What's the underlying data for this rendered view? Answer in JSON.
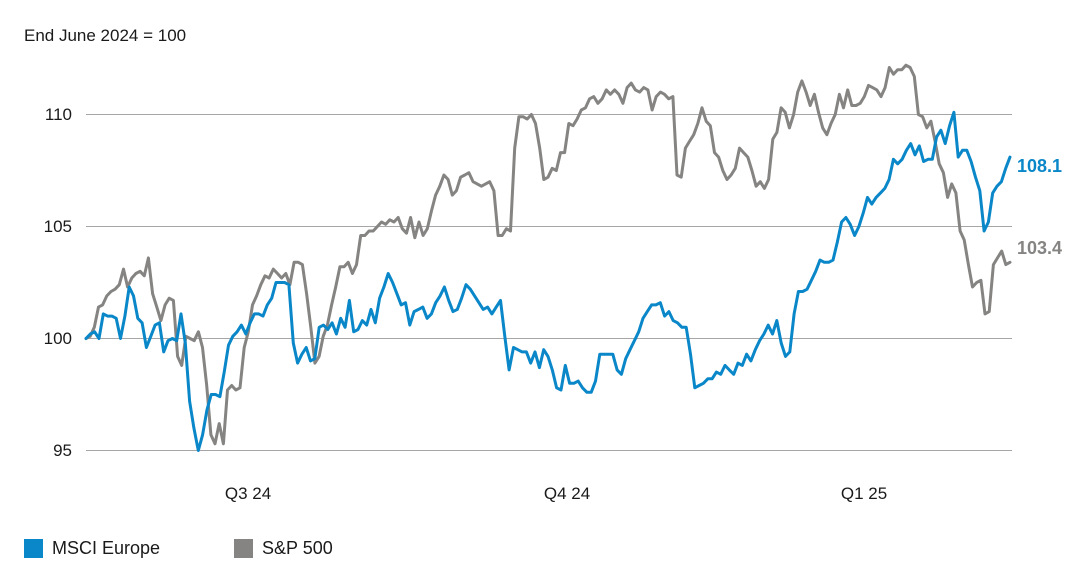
{
  "chart_data": {
    "type": "line",
    "subtitle": "End June 2024 = 100",
    "xlabel": "",
    "ylabel": "",
    "x_tick_labels": [
      "Q3 24",
      "Q4 24",
      "Q1 25"
    ],
    "y_tick_labels": [
      "95",
      "100",
      "105",
      "110"
    ],
    "ylim": [
      94.5,
      112.5
    ],
    "grid": "horizontal",
    "legend_placement": "bottom-left",
    "series": [
      {
        "name": "MSCI Europe",
        "color": "#0a87c8",
        "end_label": "108.1",
        "values": [
          100.0,
          100.2,
          100.3,
          100.0,
          101.1,
          101.0,
          101.0,
          100.9,
          100.0,
          101.0,
          102.3,
          101.9,
          100.9,
          100.7,
          99.6,
          100.1,
          100.6,
          100.7,
          99.4,
          99.9,
          100.0,
          99.9,
          101.1,
          99.8,
          97.2,
          96.0,
          95.0,
          95.7,
          96.8,
          97.5,
          97.5,
          97.4,
          98.5,
          99.7,
          100.1,
          100.3,
          100.6,
          100.2,
          100.7,
          101.1,
          101.1,
          101.0,
          101.5,
          101.8,
          102.5,
          102.5,
          102.5,
          102.4,
          99.8,
          98.9,
          99.3,
          99.6,
          99.0,
          99.1,
          100.5,
          100.6,
          100.4,
          100.7,
          100.2,
          100.9,
          100.5,
          101.7,
          100.3,
          100.4,
          100.8,
          100.6,
          101.3,
          100.7,
          101.8,
          102.3,
          102.9,
          102.5,
          102.0,
          101.5,
          101.6,
          100.6,
          101.2,
          101.3,
          101.4,
          100.9,
          101.1,
          101.6,
          101.9,
          102.3,
          101.7,
          101.2,
          101.3,
          101.8,
          102.4,
          102.2,
          101.9,
          101.6,
          101.3,
          101.4,
          101.1,
          101.4,
          101.7,
          100.1,
          98.6,
          99.6,
          99.5,
          99.4,
          99.4,
          98.9,
          99.4,
          98.7,
          99.5,
          99.2,
          98.6,
          97.8,
          97.7,
          98.8,
          98.0,
          98.0,
          98.1,
          97.8,
          97.6,
          97.6,
          98.1,
          99.3,
          99.3,
          99.3,
          99.3,
          98.6,
          98.4,
          99.1,
          99.5,
          99.9,
          100.3,
          100.9,
          101.2,
          101.5,
          101.5,
          101.6,
          101.0,
          101.2,
          100.8,
          100.7,
          100.5,
          100.5,
          99.3,
          97.8,
          97.9,
          98.0,
          98.2,
          98.2,
          98.5,
          98.4,
          98.8,
          98.6,
          98.4,
          98.9,
          98.8,
          99.3,
          99.0,
          99.5,
          99.9,
          100.2,
          100.6,
          100.2,
          100.8,
          99.8,
          99.2,
          99.4,
          101.1,
          102.1,
          102.1,
          102.2,
          102.6,
          103.0,
          103.5,
          103.4,
          103.4,
          103.5,
          104.3,
          105.2,
          105.4,
          105.1,
          104.6,
          105.0,
          105.6,
          106.3,
          106.0,
          106.3,
          106.5,
          106.7,
          107.1,
          108.0,
          107.8,
          108.0,
          108.4,
          108.7,
          108.2,
          108.6,
          107.9,
          108.0,
          108.0,
          109.0,
          109.3,
          108.7,
          109.5,
          110.1,
          108.1,
          108.4,
          108.4,
          107.9,
          107.2,
          106.6,
          104.8,
          105.2,
          106.5,
          106.8,
          107.0,
          107.6,
          108.1
        ]
      },
      {
        "name": "S&P 500",
        "color": "#858482",
        "end_label": "103.4",
        "values": [
          100.0,
          100.1,
          100.5,
          101.4,
          101.5,
          101.9,
          102.1,
          102.2,
          102.4,
          103.1,
          102.3,
          102.7,
          102.9,
          103.0,
          102.8,
          103.6,
          102.0,
          101.4,
          100.8,
          101.5,
          101.8,
          101.7,
          99.2,
          98.8,
          100.1,
          100.0,
          99.9,
          100.3,
          99.6,
          97.9,
          95.7,
          95.3,
          96.2,
          95.3,
          97.7,
          97.9,
          97.7,
          97.8,
          99.6,
          100.3,
          101.5,
          101.9,
          102.4,
          102.8,
          102.7,
          103.1,
          102.9,
          102.7,
          102.9,
          102.4,
          103.4,
          103.4,
          103.3,
          102.0,
          100.5,
          98.9,
          99.2,
          100.1,
          100.6,
          101.5,
          102.3,
          103.2,
          103.2,
          103.4,
          102.9,
          103.3,
          104.6,
          104.6,
          104.8,
          104.8,
          105.0,
          105.2,
          105.1,
          105.3,
          105.2,
          105.4,
          104.9,
          104.7,
          105.4,
          104.5,
          105.2,
          104.6,
          104.9,
          105.7,
          106.4,
          106.8,
          107.3,
          107.1,
          106.4,
          106.6,
          107.2,
          107.3,
          107.4,
          107.0,
          106.9,
          106.8,
          106.9,
          107.0,
          106.6,
          104.6,
          104.6,
          104.9,
          104.8,
          108.5,
          109.9,
          109.9,
          109.8,
          110.0,
          109.6,
          108.5,
          107.1,
          107.2,
          107.6,
          107.5,
          108.3,
          108.3,
          109.6,
          109.5,
          109.8,
          110.2,
          110.3,
          110.7,
          110.8,
          110.5,
          110.7,
          111.1,
          110.9,
          111.1,
          110.9,
          110.5,
          111.2,
          111.4,
          111.1,
          111.0,
          111.2,
          111.1,
          110.2,
          110.8,
          111.0,
          110.9,
          110.7,
          110.8,
          107.3,
          107.2,
          108.5,
          108.8,
          109.1,
          109.6,
          110.3,
          109.7,
          109.5,
          108.3,
          108.1,
          107.5,
          107.1,
          107.3,
          107.6,
          108.5,
          108.3,
          108.1,
          107.5,
          106.8,
          107.0,
          106.7,
          107.1,
          108.9,
          109.2,
          110.3,
          110.1,
          109.4,
          110.0,
          111.0,
          111.5,
          111.0,
          110.4,
          110.9,
          110.1,
          109.4,
          109.1,
          109.6,
          110.0,
          110.9,
          110.3,
          111.1,
          110.4,
          110.4,
          110.5,
          110.8,
          111.3,
          111.2,
          111.1,
          110.8,
          111.2,
          112.1,
          111.8,
          112.0,
          112.0,
          112.2,
          112.1,
          111.7,
          110.0,
          109.9,
          109.4,
          109.7,
          108.8,
          107.8,
          107.4,
          106.3,
          106.9,
          106.5,
          104.8,
          104.4,
          103.3,
          102.3,
          102.5,
          102.6,
          101.1,
          101.2,
          103.3,
          103.6,
          103.9,
          103.3,
          103.4
        ]
      }
    ]
  }
}
